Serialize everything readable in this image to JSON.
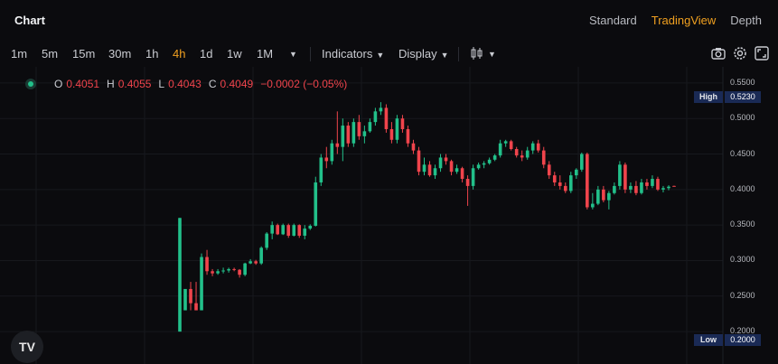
{
  "header": {
    "title": "Chart",
    "views": [
      "Standard",
      "TradingView",
      "Depth"
    ],
    "active_view": "TradingView"
  },
  "toolbar": {
    "timeframes": [
      "1m",
      "5m",
      "15m",
      "30m",
      "1h",
      "4h",
      "1d",
      "1w",
      "1M"
    ],
    "active_timeframe": "4h",
    "indicators_label": "Indicators",
    "display_label": "Display"
  },
  "ohlc": {
    "o_label": "O",
    "o": "0.4051",
    "h_label": "H",
    "h": "0.4055",
    "l_label": "L",
    "l": "0.4043",
    "c_label": "C",
    "c": "0.4049",
    "change": "−0.0002 (−0.05%)"
  },
  "price_axis": {
    "labels": [
      "0.5500",
      "0.5000",
      "0.4500",
      "0.4000",
      "0.3500",
      "0.3000",
      "0.2500",
      "0.2000"
    ]
  },
  "markers": {
    "high_label": "High",
    "high_value": "0.5230",
    "low_label": "Low",
    "low_value": "0.2000"
  },
  "colors": {
    "up": "#22c08a",
    "down": "#f0444c",
    "accent": "#f0a020",
    "marker_bg": "#1a2a55"
  },
  "chart_data": {
    "type": "candlestick",
    "ylim": [
      0.19,
      0.56
    ],
    "candles": [
      [
        0.2,
        0.36,
        0.2,
        0.36
      ],
      [
        0.23,
        0.26,
        0.23,
        0.26
      ],
      [
        0.26,
        0.27,
        0.23,
        0.24
      ],
      [
        0.24,
        0.27,
        0.23,
        0.23
      ],
      [
        0.23,
        0.31,
        0.23,
        0.305
      ],
      [
        0.305,
        0.315,
        0.28,
        0.285
      ],
      [
        0.285,
        0.288,
        0.278,
        0.282
      ],
      [
        0.282,
        0.288,
        0.28,
        0.285
      ],
      [
        0.285,
        0.29,
        0.282,
        0.286
      ],
      [
        0.286,
        0.29,
        0.283,
        0.288
      ],
      [
        0.288,
        0.29,
        0.285,
        0.287
      ],
      [
        0.287,
        0.288,
        0.276,
        0.28
      ],
      [
        0.28,
        0.297,
        0.278,
        0.296
      ],
      [
        0.296,
        0.302,
        0.295,
        0.299
      ],
      [
        0.299,
        0.301,
        0.294,
        0.296
      ],
      [
        0.296,
        0.32,
        0.294,
        0.318
      ],
      [
        0.318,
        0.34,
        0.315,
        0.338
      ],
      [
        0.338,
        0.355,
        0.33,
        0.35
      ],
      [
        0.35,
        0.352,
        0.336,
        0.337
      ],
      [
        0.337,
        0.352,
        0.336,
        0.35
      ],
      [
        0.35,
        0.352,
        0.332,
        0.335
      ],
      [
        0.335,
        0.352,
        0.334,
        0.35
      ],
      [
        0.35,
        0.351,
        0.332,
        0.335
      ],
      [
        0.335,
        0.35,
        0.33,
        0.345
      ],
      [
        0.345,
        0.351,
        0.343,
        0.349
      ],
      [
        0.349,
        0.418,
        0.348,
        0.41
      ],
      [
        0.41,
        0.45,
        0.405,
        0.445
      ],
      [
        0.445,
        0.46,
        0.43,
        0.44
      ],
      [
        0.44,
        0.47,
        0.435,
        0.465
      ],
      [
        0.465,
        0.51,
        0.45,
        0.46
      ],
      [
        0.46,
        0.5,
        0.44,
        0.49
      ],
      [
        0.49,
        0.495,
        0.46,
        0.465
      ],
      [
        0.465,
        0.5,
        0.46,
        0.495
      ],
      [
        0.495,
        0.505,
        0.47,
        0.475
      ],
      [
        0.475,
        0.49,
        0.465,
        0.482
      ],
      [
        0.482,
        0.5,
        0.48,
        0.495
      ],
      [
        0.495,
        0.515,
        0.49,
        0.51
      ],
      [
        0.51,
        0.523,
        0.505,
        0.515
      ],
      [
        0.515,
        0.52,
        0.48,
        0.485
      ],
      [
        0.485,
        0.495,
        0.465,
        0.47
      ],
      [
        0.47,
        0.505,
        0.465,
        0.5
      ],
      [
        0.5,
        0.505,
        0.48,
        0.485
      ],
      [
        0.485,
        0.49,
        0.46,
        0.465
      ],
      [
        0.465,
        0.47,
        0.45,
        0.455
      ],
      [
        0.455,
        0.46,
        0.42,
        0.425
      ],
      [
        0.425,
        0.445,
        0.42,
        0.435
      ],
      [
        0.435,
        0.44,
        0.418,
        0.42
      ],
      [
        0.42,
        0.435,
        0.415,
        0.43
      ],
      [
        0.43,
        0.45,
        0.425,
        0.445
      ],
      [
        0.445,
        0.45,
        0.435,
        0.44
      ],
      [
        0.44,
        0.442,
        0.42,
        0.425
      ],
      [
        0.425,
        0.435,
        0.422,
        0.43
      ],
      [
        0.43,
        0.432,
        0.41,
        0.415
      ],
      [
        0.415,
        0.42,
        0.377,
        0.405
      ],
      [
        0.405,
        0.435,
        0.4,
        0.43
      ],
      [
        0.43,
        0.438,
        0.428,
        0.435
      ],
      [
        0.435,
        0.44,
        0.43,
        0.437
      ],
      [
        0.437,
        0.445,
        0.435,
        0.442
      ],
      [
        0.442,
        0.45,
        0.44,
        0.448
      ],
      [
        0.448,
        0.47,
        0.445,
        0.465
      ],
      [
        0.465,
        0.47,
        0.46,
        0.468
      ],
      [
        0.468,
        0.47,
        0.455,
        0.457
      ],
      [
        0.457,
        0.46,
        0.445,
        0.448
      ],
      [
        0.448,
        0.455,
        0.44,
        0.445
      ],
      [
        0.445,
        0.46,
        0.442,
        0.455
      ],
      [
        0.455,
        0.468,
        0.45,
        0.465
      ],
      [
        0.465,
        0.47,
        0.452,
        0.455
      ],
      [
        0.455,
        0.46,
        0.43,
        0.435
      ],
      [
        0.435,
        0.44,
        0.415,
        0.42
      ],
      [
        0.42,
        0.425,
        0.405,
        0.41
      ],
      [
        0.41,
        0.42,
        0.4,
        0.405
      ],
      [
        0.405,
        0.41,
        0.395,
        0.398
      ],
      [
        0.398,
        0.425,
        0.395,
        0.42
      ],
      [
        0.42,
        0.43,
        0.415,
        0.428
      ],
      [
        0.428,
        0.452,
        0.425,
        0.45
      ],
      [
        0.45,
        0.452,
        0.372,
        0.375
      ],
      [
        0.375,
        0.395,
        0.372,
        0.38
      ],
      [
        0.38,
        0.405,
        0.378,
        0.4
      ],
      [
        0.4,
        0.405,
        0.382,
        0.385
      ],
      [
        0.385,
        0.398,
        0.372,
        0.395
      ],
      [
        0.395,
        0.41,
        0.393,
        0.405
      ],
      [
        0.405,
        0.44,
        0.4,
        0.435
      ],
      [
        0.435,
        0.438,
        0.395,
        0.4
      ],
      [
        0.4,
        0.41,
        0.395,
        0.405
      ],
      [
        0.405,
        0.412,
        0.392,
        0.395
      ],
      [
        0.395,
        0.415,
        0.393,
        0.41
      ],
      [
        0.41,
        0.415,
        0.4,
        0.405
      ],
      [
        0.405,
        0.42,
        0.402,
        0.415
      ],
      [
        0.415,
        0.418,
        0.398,
        0.4
      ],
      [
        0.4,
        0.405,
        0.396,
        0.402
      ],
      [
        0.402,
        0.406,
        0.399,
        0.404
      ],
      [
        0.4051,
        0.4055,
        0.4043,
        0.4049
      ]
    ]
  }
}
